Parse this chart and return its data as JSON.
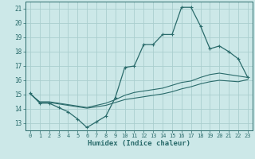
{
  "title": "",
  "xlabel": "Humidex (Indice chaleur)",
  "bg_color": "#cce8e8",
  "grid_color": "#aacece",
  "line_color": "#2a6b6b",
  "xlim": [
    -0.5,
    23.5
  ],
  "ylim": [
    12.5,
    21.5
  ],
  "yticks": [
    13,
    14,
    15,
    16,
    17,
    18,
    19,
    20,
    21
  ],
  "xticks": [
    0,
    1,
    2,
    3,
    4,
    5,
    6,
    7,
    8,
    9,
    10,
    11,
    12,
    13,
    14,
    15,
    16,
    17,
    18,
    19,
    20,
    21,
    22,
    23
  ],
  "main_x": [
    0,
    1,
    2,
    3,
    4,
    5,
    6,
    7,
    8,
    9,
    10,
    11,
    12,
    13,
    14,
    15,
    16,
    17,
    18,
    19,
    20,
    21,
    22,
    23
  ],
  "main_y": [
    15.1,
    14.4,
    14.4,
    14.1,
    13.8,
    13.3,
    12.7,
    13.1,
    13.5,
    14.8,
    16.9,
    17.0,
    18.5,
    18.5,
    19.2,
    19.2,
    21.1,
    21.1,
    19.8,
    18.2,
    18.4,
    18.0,
    17.5,
    16.2
  ],
  "line2_x": [
    0,
    1,
    2,
    3,
    4,
    5,
    6,
    7,
    8,
    9,
    10,
    11,
    12,
    13,
    14,
    15,
    16,
    17,
    18,
    19,
    20,
    21,
    22,
    23
  ],
  "line2_y": [
    15.05,
    14.45,
    14.45,
    14.35,
    14.25,
    14.15,
    14.05,
    14.15,
    14.25,
    14.45,
    14.65,
    14.75,
    14.85,
    14.95,
    15.05,
    15.2,
    15.4,
    15.55,
    15.75,
    15.9,
    16.0,
    15.95,
    15.9,
    16.05
  ],
  "line3_x": [
    0,
    1,
    2,
    3,
    4,
    5,
    6,
    7,
    8,
    9,
    10,
    11,
    12,
    13,
    14,
    15,
    16,
    17,
    18,
    19,
    20,
    21,
    22,
    23
  ],
  "line3_y": [
    15.05,
    14.5,
    14.5,
    14.4,
    14.3,
    14.2,
    14.1,
    14.25,
    14.4,
    14.65,
    14.95,
    15.15,
    15.25,
    15.35,
    15.45,
    15.65,
    15.85,
    15.95,
    16.2,
    16.4,
    16.5,
    16.4,
    16.3,
    16.2
  ]
}
